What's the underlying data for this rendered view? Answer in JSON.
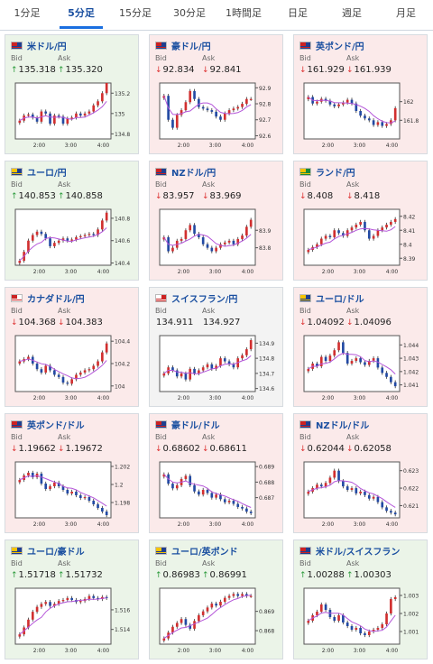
{
  "tabs": [
    {
      "label": "1分足",
      "active": false
    },
    {
      "label": "5分足",
      "active": true
    },
    {
      "label": "15分足",
      "active": false
    },
    {
      "label": "30分足",
      "active": false
    },
    {
      "label": "1時間足",
      "active": false
    },
    {
      "label": "日足",
      "active": false
    },
    {
      "label": "週足",
      "active": false
    },
    {
      "label": "月足",
      "active": false
    }
  ],
  "labels": {
    "bid": "Bid",
    "ask": "Ask"
  },
  "colors": {
    "up": "#2a9a3a",
    "down": "#d33333",
    "ma": "#b455d9",
    "candle_up": "#d12f2f",
    "candle_down": "#2249a3"
  },
  "pairs": [
    {
      "name": "米ドル/円",
      "flag": "us-jp-flag",
      "direction": "up",
      "bid": "135.318",
      "ask": "135.320",
      "chart_data": {
        "type": "candlestick",
        "x_ticks": [
          "2:00",
          "3:00",
          "4:00"
        ],
        "y_ticks": [
          "135.2",
          "135",
          "134.8"
        ],
        "ylim": [
          134.75,
          135.3
        ],
        "closes": [
          134.93,
          134.98,
          134.99,
          134.96,
          134.92,
          135.02,
          135.0,
          134.9,
          134.98,
          134.97,
          134.9,
          134.95,
          134.96,
          135.0,
          134.98,
          135.0,
          135.02,
          135.08,
          135.12,
          135.2,
          135.3
        ]
      }
    },
    {
      "name": "豪ドル/円",
      "flag": "au-jp-flag",
      "direction": "down",
      "bid": "92.834",
      "ask": "92.841",
      "chart_data": {
        "type": "candlestick",
        "x_ticks": [
          "2:00",
          "3:00",
          "4:00"
        ],
        "y_ticks": [
          "92.9",
          "92.8",
          "92.7",
          "92.6"
        ],
        "ylim": [
          92.58,
          92.93
        ],
        "closes": [
          92.85,
          92.7,
          92.65,
          92.73,
          92.76,
          92.81,
          92.88,
          92.83,
          92.78,
          92.77,
          92.76,
          92.75,
          92.72,
          92.7,
          92.74,
          92.76,
          92.77,
          92.78,
          92.8,
          92.83,
          92.83
        ]
      }
    },
    {
      "name": "英ポンド/円",
      "flag": "gb-jp-flag",
      "direction": "down",
      "bid": "161.929",
      "ask": "161.939",
      "chart_data": {
        "type": "candlestick",
        "x_ticks": [
          "2:00",
          "3:00",
          "4:00"
        ],
        "y_ticks": [
          "162",
          "161.8"
        ],
        "ylim": [
          161.6,
          162.2
        ],
        "closes": [
          162.05,
          161.98,
          162.0,
          162.03,
          162.01,
          161.97,
          161.95,
          161.97,
          161.99,
          162.02,
          161.98,
          161.9,
          161.85,
          161.82,
          161.8,
          161.75,
          161.78,
          161.74,
          161.76,
          161.8,
          161.93
        ]
      }
    },
    {
      "name": "ユーロ/円",
      "flag": "eu-jp-flag",
      "direction": "up",
      "bid": "140.853",
      "ask": "140.858",
      "chart_data": {
        "type": "candlestick",
        "x_ticks": [
          "2:00",
          "3:00",
          "4:00"
        ],
        "y_ticks": [
          "140.8",
          "140.6",
          "140.4"
        ],
        "ylim": [
          140.38,
          140.88
        ],
        "closes": [
          140.42,
          140.5,
          140.6,
          140.65,
          140.68,
          140.66,
          140.62,
          140.55,
          140.58,
          140.6,
          140.62,
          140.6,
          140.61,
          140.63,
          140.64,
          140.65,
          140.66,
          140.65,
          140.7,
          140.78,
          140.85
        ]
      }
    },
    {
      "name": "NZドル/円",
      "flag": "nz-jp-flag",
      "direction": "down",
      "bid": "83.957",
      "ask": "83.969",
      "chart_data": {
        "type": "candlestick",
        "x_ticks": [
          "2:00",
          "3:00",
          "4:00"
        ],
        "y_ticks": [
          "83.9",
          "83.8"
        ],
        "ylim": [
          83.7,
          84.02
        ],
        "closes": [
          83.86,
          83.78,
          83.8,
          83.84,
          83.85,
          83.9,
          83.93,
          83.88,
          83.86,
          83.82,
          83.8,
          83.78,
          83.8,
          83.82,
          83.83,
          83.84,
          83.82,
          83.85,
          83.87,
          83.92,
          83.96
        ]
      }
    },
    {
      "name": "ランド/円",
      "flag": "za-jp-flag",
      "direction": "down",
      "bid": "8.408",
      "ask": "8.418",
      "chart_data": {
        "type": "candlestick",
        "x_ticks": [
          "2:00",
          "3:00",
          "4:00"
        ],
        "y_ticks": [
          "8.42",
          "8.41",
          "8.4",
          "8.39"
        ],
        "ylim": [
          8.385,
          8.425
        ],
        "closes": [
          8.396,
          8.398,
          8.4,
          8.404,
          8.406,
          8.405,
          8.41,
          8.408,
          8.406,
          8.41,
          8.412,
          8.414,
          8.416,
          8.41,
          8.404,
          8.406,
          8.41,
          8.412,
          8.414,
          8.416,
          8.418
        ]
      }
    },
    {
      "name": "カナダドル/円",
      "flag": "ca-jp-flag",
      "direction": "down",
      "bid": "104.368",
      "ask": "104.383",
      "chart_data": {
        "type": "candlestick",
        "x_ticks": [
          "2:00",
          "3:00",
          "4:00"
        ],
        "y_ticks": [
          "104.4",
          "104.2",
          "104"
        ],
        "ylim": [
          103.95,
          104.45
        ],
        "closes": [
          104.22,
          104.24,
          104.26,
          104.2,
          104.15,
          104.12,
          104.18,
          104.14,
          104.1,
          104.08,
          104.03,
          104.02,
          104.06,
          104.1,
          104.12,
          104.14,
          104.15,
          104.18,
          104.22,
          104.3,
          104.38
        ]
      }
    },
    {
      "name": "スイスフラン/円",
      "flag": "ch-jp-flag",
      "direction": "flat",
      "bid": "134.911",
      "ask": "134.927",
      "chart_data": {
        "type": "candlestick",
        "x_ticks": [
          "2:00",
          "3:00",
          "4:00"
        ],
        "y_ticks": [
          "134.9",
          "134.8",
          "134.7",
          "134.6"
        ],
        "ylim": [
          134.58,
          134.95
        ],
        "closes": [
          134.7,
          134.74,
          134.72,
          134.68,
          134.7,
          134.66,
          134.73,
          134.7,
          134.72,
          134.74,
          134.76,
          134.73,
          134.75,
          134.8,
          134.78,
          134.76,
          134.74,
          134.8,
          134.82,
          134.86,
          134.92
        ]
      }
    },
    {
      "name": "ユーロ/ドル",
      "flag": "eu-us-flag",
      "direction": "down",
      "bid": "1.04092",
      "ask": "1.04096",
      "chart_data": {
        "type": "candlestick",
        "x_ticks": [
          "2:00",
          "3:00",
          "4:00"
        ],
        "y_ticks": [
          "1.044",
          "1.043",
          "1.042",
          "1.041"
        ],
        "ylim": [
          1.0405,
          1.0447
        ],
        "closes": [
          1.0422,
          1.0426,
          1.0424,
          1.0431,
          1.0428,
          1.0432,
          1.0436,
          1.0442,
          1.0434,
          1.0426,
          1.0428,
          1.043,
          1.0427,
          1.0425,
          1.0428,
          1.043,
          1.0423,
          1.0419,
          1.0416,
          1.0412,
          1.0409
        ]
      }
    },
    {
      "name": "英ポンド/ドル",
      "flag": "gb-us-flag",
      "direction": "down",
      "bid": "1.19662",
      "ask": "1.19672",
      "chart_data": {
        "type": "candlestick",
        "x_ticks": [
          "2:00",
          "3:00",
          "4:00"
        ],
        "y_ticks": [
          "1.202",
          "1.2",
          "1.198"
        ],
        "ylim": [
          1.1963,
          1.2025
        ],
        "closes": [
          1.2005,
          1.201,
          1.2013,
          1.2008,
          1.2012,
          1.2001,
          1.1995,
          1.1998,
          1.2002,
          1.1998,
          1.1994,
          1.199,
          1.1992,
          1.1988,
          1.1985,
          1.1986,
          1.1982,
          1.1978,
          1.1974,
          1.197,
          1.1966
        ]
      }
    },
    {
      "name": "豪ドル/ドル",
      "flag": "au-us-flag",
      "direction": "down",
      "bid": "0.68602",
      "ask": "0.68611",
      "chart_data": {
        "type": "candlestick",
        "x_ticks": [
          "2:00",
          "3:00",
          "4:00"
        ],
        "y_ticks": [
          "0.689",
          "0.688",
          "0.687"
        ],
        "ylim": [
          0.6857,
          0.6893
        ],
        "closes": [
          0.6885,
          0.6879,
          0.6876,
          0.6878,
          0.6882,
          0.6884,
          0.6878,
          0.6874,
          0.6872,
          0.6875,
          0.6873,
          0.687,
          0.6872,
          0.6869,
          0.6867,
          0.6868,
          0.6866,
          0.6864,
          0.6863,
          0.6861,
          0.686
        ]
      }
    },
    {
      "name": "NZドル/ドル",
      "flag": "nz-us-flag",
      "direction": "down",
      "bid": "0.62044",
      "ask": "0.62058",
      "chart_data": {
        "type": "candlestick",
        "x_ticks": [
          "2:00",
          "3:00",
          "4:00"
        ],
        "y_ticks": [
          "0.623",
          "0.622",
          "0.621"
        ],
        "ylim": [
          0.6203,
          0.6235
        ],
        "closes": [
          0.6218,
          0.622,
          0.6222,
          0.6221,
          0.6223,
          0.6226,
          0.623,
          0.6224,
          0.6221,
          0.6219,
          0.622,
          0.6217,
          0.6218,
          0.6216,
          0.6214,
          0.6215,
          0.6212,
          0.6209,
          0.6207,
          0.6206,
          0.6205
        ]
      }
    },
    {
      "name": "ユーロ/豪ドル",
      "flag": "eu-au-flag",
      "direction": "up",
      "bid": "1.51718",
      "ask": "1.51732",
      "chart_data": {
        "type": "candlestick",
        "x_ticks": [
          "2:00",
          "3:00",
          "4:00"
        ],
        "y_ticks": [
          "1.516",
          "1.514"
        ],
        "ylim": [
          1.5125,
          1.5182
        ],
        "closes": [
          1.5135,
          1.5142,
          1.515,
          1.5158,
          1.5163,
          1.5166,
          1.5168,
          1.5164,
          1.5166,
          1.5169,
          1.517,
          1.5172,
          1.517,
          1.5168,
          1.5169,
          1.5171,
          1.5174,
          1.5172,
          1.5171,
          1.5173,
          1.5172
        ]
      }
    },
    {
      "name": "ユーロ/英ポンド",
      "flag": "eu-gb-flag",
      "direction": "up",
      "bid": "0.86983",
      "ask": "0.86991",
      "chart_data": {
        "type": "candlestick",
        "x_ticks": [
          "2:00",
          "3:00",
          "4:00"
        ],
        "y_ticks": [
          "0.869",
          "0.868"
        ],
        "ylim": [
          0.8673,
          0.8702
        ],
        "closes": [
          0.8676,
          0.8679,
          0.8682,
          0.8684,
          0.8686,
          0.8683,
          0.8681,
          0.8685,
          0.8688,
          0.869,
          0.8692,
          0.8694,
          0.8693,
          0.8695,
          0.8697,
          0.8698,
          0.8699,
          0.8698,
          0.8699,
          0.8698,
          0.8698
        ]
      }
    },
    {
      "name": "米ドル/スイスフラン",
      "flag": "us-ch-flag",
      "direction": "up",
      "bid": "1.00288",
      "ask": "1.00303",
      "chart_data": {
        "type": "candlestick",
        "x_ticks": [
          "2:00",
          "3:00",
          "4:00"
        ],
        "y_ticks": [
          "1.003",
          "1.002",
          "1.001"
        ],
        "ylim": [
          1.0003,
          1.0034
        ],
        "closes": [
          1.0016,
          1.0019,
          1.0021,
          1.0025,
          1.0022,
          1.0018,
          1.0016,
          1.0019,
          1.0015,
          1.0013,
          1.0011,
          1.0012,
          1.0009,
          1.0008,
          1.001,
          1.0011,
          1.0012,
          1.0014,
          1.002,
          1.0028,
          1.0029
        ]
      }
    }
  ]
}
